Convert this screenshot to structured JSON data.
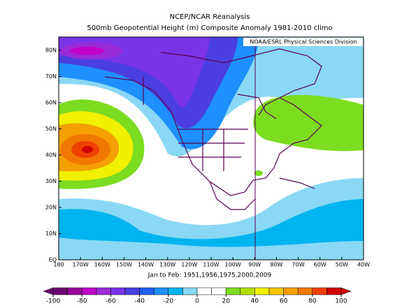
{
  "header": {
    "title": "NCEP/NCAR Reanalysis",
    "subtitle": "500mb Geopotential Height (m) Composite Anomaly 1981-2010 climo"
  },
  "map": {
    "credit": "NOAA/ESRL Physical Sciences Division",
    "lat_labels": [
      "80N",
      "70N",
      "60N",
      "50N",
      "40N",
      "30N",
      "20N",
      "10N",
      "EQ"
    ],
    "lon_labels": [
      "180",
      "170W",
      "160W",
      "150W",
      "140W",
      "130W",
      "120W",
      "110W",
      "100W",
      "90W",
      "80W",
      "70W",
      "60W",
      "50W",
      "40W"
    ]
  },
  "footer": {
    "period": "Jan to Feb: 1951,1956,1975,2000,2009"
  },
  "colorbar": {
    "ticks": [
      -100,
      -80,
      -60,
      -40,
      -20,
      0,
      20,
      40,
      60,
      80,
      100
    ],
    "colors": [
      "#6e0070",
      "#98009a",
      "#c000c8",
      "#9a2ad8",
      "#7a34e6",
      "#4b3fe0",
      "#1e5ef0",
      "#1e90ff",
      "#00b4f0",
      "#8ad8f5",
      "#ffffff",
      "#ffffff",
      "#7cdc20",
      "#b4e000",
      "#f0f000",
      "#f5c800",
      "#f5a000",
      "#f07800",
      "#f04000",
      "#d00000"
    ]
  }
}
